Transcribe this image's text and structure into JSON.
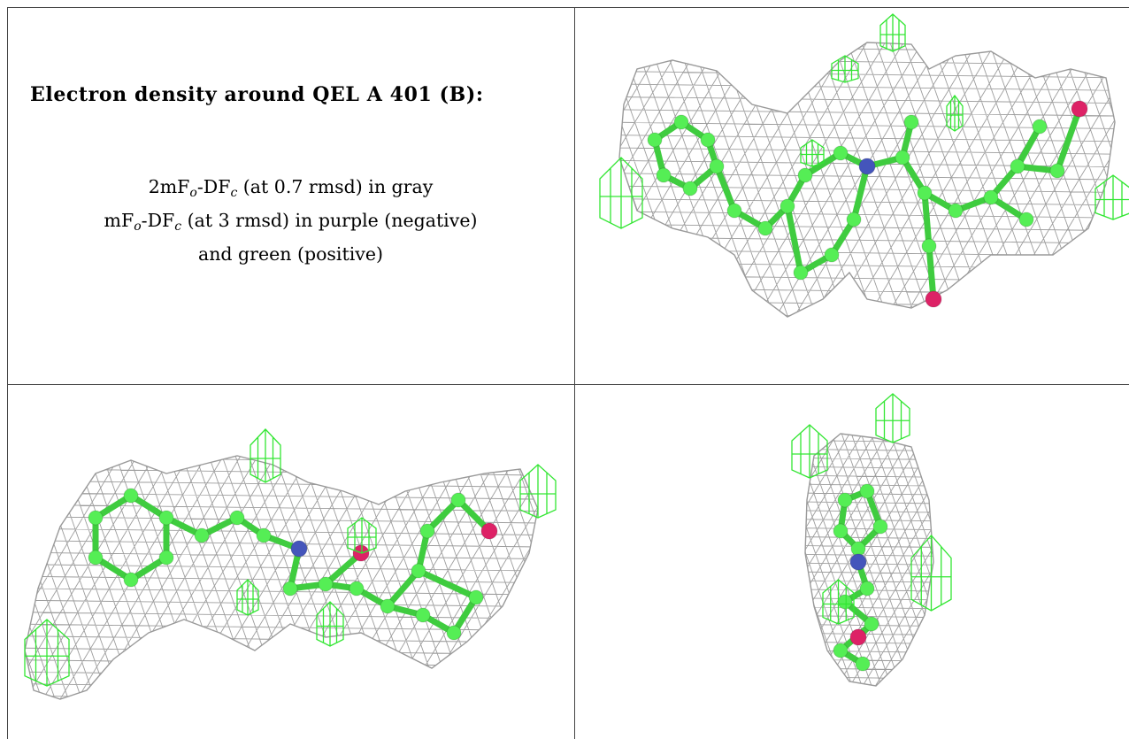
{
  "caption": {
    "title": "Electron density around QEL A 401 (B):",
    "line1_a": "2mF",
    "line1_sub1": "o",
    "line1_b": "-DF",
    "line1_sub2": "c",
    "line1_c": " (at 0.7 rmsd) in gray",
    "line2_a": "mF",
    "line2_sub1": "o",
    "line2_b": "-DF",
    "line2_sub2": "c",
    "line2_c": " (at 3 rmsd) in purple (negative)",
    "line3": "and green (positive)"
  },
  "colors": {
    "density_mesh": "#8c8c8c",
    "positive_difference": "#33e633",
    "carbon": "#55ee55",
    "nitrogen": "#4455bb",
    "oxygen": "#dd2266",
    "border": "#444444"
  },
  "panels": [
    {
      "view": "front",
      "icon": "electron-density-front-view"
    },
    {
      "view": "side",
      "icon": "electron-density-side-view"
    },
    {
      "view": "end",
      "icon": "electron-density-end-view"
    }
  ]
}
